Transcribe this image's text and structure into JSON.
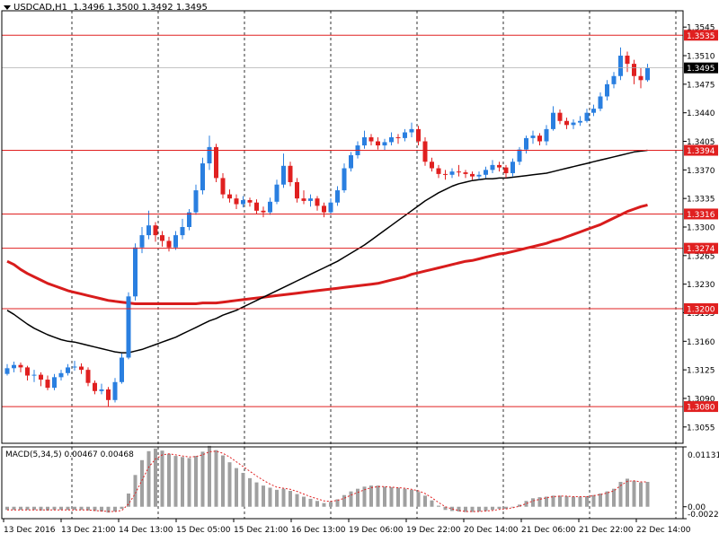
{
  "header": {
    "symbol": "USDCAD,H1",
    "ohlc": "1.3496 1.3500 1.3492 1.3495"
  },
  "macd": {
    "label": "MACD(5,34,5)",
    "values": "0.00467 0.00468",
    "axis_top": "0.01131",
    "axis_zero": "0.00",
    "axis_bottom": "-0.00225"
  },
  "colors": {
    "bull": "#2a7fe0",
    "bear": "#e02020",
    "ma_slow": "#d81c1c",
    "ma_fast": "#000000",
    "level_line": "#e02020",
    "level_tag_bg": "#e02020",
    "current_tag_bg": "#000000",
    "macd_hist": "#a0a0a0",
    "macd_signal": "#e02020"
  },
  "chart_data": {
    "type": "line",
    "title": "USDCAD,H1",
    "ylim": [
      1.3035,
      1.3565
    ],
    "price_ticks": [
      "1.3545",
      "1.3510",
      "1.3475",
      "1.3440",
      "1.3405",
      "1.3370",
      "1.3335",
      "1.3300",
      "1.3265",
      "1.3230",
      "1.3195",
      "1.3160",
      "1.3125",
      "1.3090",
      "1.3055"
    ],
    "time_ticks": [
      "13 Dec 2016",
      "13 Dec 21:00",
      "14 Dec 13:00",
      "15 Dec 05:00",
      "15 Dec 21:00",
      "16 Dec 13:00",
      "19 Dec 06:00",
      "19 Dec 22:00",
      "20 Dec 14:00",
      "21 Dec 06:00",
      "21 Dec 22:00",
      "22 Dec 14:00"
    ],
    "levels": [
      {
        "label": "1.3535",
        "value": 1.3535
      },
      {
        "label": "1.3394",
        "value": 1.3394
      },
      {
        "label": "1.3316",
        "value": 1.3316
      },
      {
        "label": "1.3274",
        "value": 1.3274
      },
      {
        "label": "1.3200",
        "value": 1.32
      },
      {
        "label": "1.3080",
        "value": 1.308
      }
    ],
    "current_price": {
      "label": "1.3495",
      "value": 1.3495
    },
    "series": [
      {
        "values": [
          1.3127,
          1.3131,
          1.3128,
          1.3118,
          1.3119,
          1.3113,
          1.3103,
          1.3116,
          1.3121,
          1.3128,
          1.3129,
          1.3125,
          1.3109,
          1.3099,
          1.3101,
          1.3088,
          1.311,
          1.314,
          1.3215,
          1.3275,
          1.329,
          1.3302,
          1.329,
          1.3283,
          1.3275,
          1.329,
          1.33,
          1.3318,
          1.3345,
          1.3378,
          1.3398,
          1.336,
          1.334,
          1.3335,
          1.3328,
          1.3333,
          1.333,
          1.332,
          1.3318,
          1.3331,
          1.3352,
          1.3375,
          1.3355,
          1.3335,
          1.3332,
          1.3335,
          1.3326,
          1.3318,
          1.333,
          1.3345,
          1.3372,
          1.3388,
          1.34,
          1.341,
          1.3405,
          1.34,
          1.3404,
          1.341,
          1.3409,
          1.3416,
          1.342,
          1.3405,
          1.338,
          1.3372,
          1.3365,
          1.3364,
          1.3368,
          1.3367,
          1.3365,
          1.3362,
          1.3364,
          1.337,
          1.3376,
          1.3373,
          1.3366,
          1.338,
          1.3395,
          1.3409,
          1.3412,
          1.3405,
          1.342,
          1.344,
          1.343,
          1.3425,
          1.3428,
          1.343,
          1.344,
          1.3445,
          1.346,
          1.3475,
          1.3485,
          1.351,
          1.35,
          1.3485,
          1.348,
          1.3495
        ]
      },
      {
        "values": [
          1.3258,
          1.3254,
          1.3248,
          1.3243,
          1.3239,
          1.3235,
          1.3231,
          1.3228,
          1.3225,
          1.3222,
          1.322,
          1.3218,
          1.3216,
          1.3214,
          1.3212,
          1.321,
          1.3209,
          1.3208,
          1.3207,
          1.3206,
          1.3206,
          1.3206,
          1.3206,
          1.3206,
          1.3206,
          1.3206,
          1.3206,
          1.3206,
          1.3206,
          1.3207,
          1.3207,
          1.3207,
          1.3208,
          1.3209,
          1.321,
          1.3211,
          1.3212,
          1.3213,
          1.3214,
          1.3215,
          1.3216,
          1.3217,
          1.3218,
          1.3219,
          1.322,
          1.3221,
          1.3222,
          1.3223,
          1.3224,
          1.3225,
          1.3226,
          1.3227,
          1.3228,
          1.3229,
          1.323,
          1.3231,
          1.3233,
          1.3235,
          1.3237,
          1.3239,
          1.3242,
          1.3244,
          1.3246,
          1.3248,
          1.325,
          1.3252,
          1.3254,
          1.3256,
          1.3258,
          1.3259,
          1.3261,
          1.3263,
          1.3265,
          1.3267,
          1.3268,
          1.327,
          1.3272,
          1.3274,
          1.3276,
          1.3278,
          1.328,
          1.3283,
          1.3285,
          1.3288,
          1.3291,
          1.3294,
          1.3297,
          1.33,
          1.3303,
          1.3307,
          1.3311,
          1.3315,
          1.3319,
          1.3322,
          1.3325,
          1.3327
        ]
      },
      {
        "values": [
          1.3198,
          1.3193,
          1.3187,
          1.3181,
          1.3176,
          1.3172,
          1.3168,
          1.3165,
          1.3162,
          1.316,
          1.3159,
          1.3157,
          1.3155,
          1.3153,
          1.3151,
          1.3149,
          1.3147,
          1.3146,
          1.3146,
          1.3148,
          1.315,
          1.3153,
          1.3156,
          1.3159,
          1.3162,
          1.3165,
          1.3169,
          1.3173,
          1.3177,
          1.3181,
          1.3185,
          1.3188,
          1.3192,
          1.3195,
          1.3198,
          1.3202,
          1.3206,
          1.321,
          1.3214,
          1.3218,
          1.3222,
          1.3226,
          1.323,
          1.3234,
          1.3238,
          1.3242,
          1.3246,
          1.325,
          1.3254,
          1.3258,
          1.3263,
          1.3268,
          1.3273,
          1.3278,
          1.3284,
          1.329,
          1.3296,
          1.3302,
          1.3308,
          1.3314,
          1.332,
          1.3326,
          1.3332,
          1.3337,
          1.3342,
          1.3346,
          1.335,
          1.3353,
          1.3355,
          1.3357,
          1.3358,
          1.3359,
          1.3359,
          1.336,
          1.336,
          1.3361,
          1.3362,
          1.3363,
          1.3364,
          1.3365,
          1.3366,
          1.3368,
          1.337,
          1.3372,
          1.3374,
          1.3376,
          1.3378,
          1.338,
          1.3382,
          1.3384,
          1.3386,
          1.3388,
          1.339,
          1.3392,
          1.3393,
          1.3394
        ]
      }
    ],
    "candles": [
      [
        1.312,
        1.3132,
        1.3118,
        1.3127
      ],
      [
        1.3127,
        1.3135,
        1.3122,
        1.3131
      ],
      [
        1.3131,
        1.3134,
        1.3122,
        1.3128
      ],
      [
        1.3128,
        1.313,
        1.3112,
        1.3118
      ],
      [
        1.3118,
        1.3125,
        1.311,
        1.3119
      ],
      [
        1.3119,
        1.3122,
        1.3105,
        1.3113
      ],
      [
        1.3113,
        1.3118,
        1.31,
        1.3103
      ],
      [
        1.3103,
        1.312,
        1.31,
        1.3116
      ],
      [
        1.3116,
        1.3125,
        1.3112,
        1.3121
      ],
      [
        1.3121,
        1.3132,
        1.3118,
        1.3128
      ],
      [
        1.3128,
        1.3136,
        1.3124,
        1.3129
      ],
      [
        1.3129,
        1.3133,
        1.312,
        1.3125
      ],
      [
        1.3125,
        1.3128,
        1.3105,
        1.3109
      ],
      [
        1.3109,
        1.3112,
        1.3095,
        1.3099
      ],
      [
        1.3099,
        1.3108,
        1.3095,
        1.3101
      ],
      [
        1.3101,
        1.3104,
        1.308,
        1.3088
      ],
      [
        1.3088,
        1.3115,
        1.3085,
        1.311
      ],
      [
        1.311,
        1.3145,
        1.3108,
        1.314
      ],
      [
        1.314,
        1.322,
        1.3138,
        1.3215
      ],
      [
        1.3215,
        1.328,
        1.321,
        1.3275
      ],
      [
        1.3275,
        1.33,
        1.3268,
        1.329
      ],
      [
        1.329,
        1.332,
        1.3285,
        1.3302
      ],
      [
        1.3302,
        1.3306,
        1.3282,
        1.329
      ],
      [
        1.329,
        1.3295,
        1.3276,
        1.3283
      ],
      [
        1.3283,
        1.3288,
        1.327,
        1.3275
      ],
      [
        1.3275,
        1.3295,
        1.3272,
        1.329
      ],
      [
        1.329,
        1.331,
        1.3285,
        1.33
      ],
      [
        1.33,
        1.3322,
        1.3296,
        1.3318
      ],
      [
        1.3318,
        1.3352,
        1.3315,
        1.3345
      ],
      [
        1.3345,
        1.3385,
        1.334,
        1.3378
      ],
      [
        1.3378,
        1.3412,
        1.337,
        1.3398
      ],
      [
        1.3398,
        1.3402,
        1.3355,
        1.336
      ],
      [
        1.336,
        1.3366,
        1.3335,
        1.334
      ],
      [
        1.334,
        1.3346,
        1.333,
        1.3335
      ],
      [
        1.3335,
        1.334,
        1.3322,
        1.3328
      ],
      [
        1.3328,
        1.3338,
        1.3324,
        1.3333
      ],
      [
        1.3333,
        1.3336,
        1.3325,
        1.333
      ],
      [
        1.333,
        1.3334,
        1.3316,
        1.332
      ],
      [
        1.332,
        1.3325,
        1.3312,
        1.3318
      ],
      [
        1.3318,
        1.3336,
        1.3315,
        1.3331
      ],
      [
        1.3331,
        1.3358,
        1.3328,
        1.3352
      ],
      [
        1.3352,
        1.339,
        1.3348,
        1.3375
      ],
      [
        1.3375,
        1.338,
        1.335,
        1.3355
      ],
      [
        1.3355,
        1.336,
        1.333,
        1.3335
      ],
      [
        1.3335,
        1.3345,
        1.3328,
        1.3332
      ],
      [
        1.3332,
        1.334,
        1.3325,
        1.3335
      ],
      [
        1.3335,
        1.3338,
        1.332,
        1.3326
      ],
      [
        1.3326,
        1.333,
        1.3312,
        1.3318
      ],
      [
        1.3318,
        1.3335,
        1.3315,
        1.333
      ],
      [
        1.333,
        1.335,
        1.3326,
        1.3345
      ],
      [
        1.3345,
        1.3378,
        1.3342,
        1.3372
      ],
      [
        1.3372,
        1.3392,
        1.3368,
        1.3388
      ],
      [
        1.3388,
        1.3405,
        1.3384,
        1.34
      ],
      [
        1.34,
        1.3418,
        1.3396,
        1.341
      ],
      [
        1.341,
        1.3414,
        1.34,
        1.3405
      ],
      [
        1.3405,
        1.341,
        1.3395,
        1.34
      ],
      [
        1.34,
        1.3408,
        1.3394,
        1.3404
      ],
      [
        1.3404,
        1.3416,
        1.34,
        1.341
      ],
      [
        1.341,
        1.3414,
        1.3402,
        1.3409
      ],
      [
        1.3409,
        1.342,
        1.3405,
        1.3416
      ],
      [
        1.3416,
        1.3428,
        1.341,
        1.342
      ],
      [
        1.342,
        1.3424,
        1.34,
        1.3405
      ],
      [
        1.3405,
        1.341,
        1.3375,
        1.338
      ],
      [
        1.338,
        1.3385,
        1.3368,
        1.3372
      ],
      [
        1.3372,
        1.3376,
        1.336,
        1.3365
      ],
      [
        1.3365,
        1.337,
        1.3358,
        1.3364
      ],
      [
        1.3364,
        1.3372,
        1.336,
        1.3368
      ],
      [
        1.3368,
        1.3376,
        1.3362,
        1.3367
      ],
      [
        1.3367,
        1.337,
        1.336,
        1.3365
      ],
      [
        1.3365,
        1.3368,
        1.3358,
        1.3362
      ],
      [
        1.3362,
        1.3368,
        1.3358,
        1.3364
      ],
      [
        1.3364,
        1.3374,
        1.336,
        1.337
      ],
      [
        1.337,
        1.3382,
        1.3366,
        1.3376
      ],
      [
        1.3376,
        1.338,
        1.3368,
        1.3373
      ],
      [
        1.3373,
        1.3376,
        1.336,
        1.3366
      ],
      [
        1.3366,
        1.3384,
        1.3362,
        1.338
      ],
      [
        1.338,
        1.3398,
        1.3376,
        1.3395
      ],
      [
        1.3395,
        1.3412,
        1.339,
        1.3409
      ],
      [
        1.3409,
        1.3418,
        1.3402,
        1.3412
      ],
      [
        1.3412,
        1.3415,
        1.34,
        1.3405
      ],
      [
        1.3405,
        1.3425,
        1.34,
        1.342
      ],
      [
        1.342,
        1.3448,
        1.3418,
        1.344
      ],
      [
        1.344,
        1.3444,
        1.3426,
        1.343
      ],
      [
        1.343,
        1.3434,
        1.342,
        1.3425
      ],
      [
        1.3425,
        1.3432,
        1.342,
        1.3428
      ],
      [
        1.3428,
        1.3436,
        1.3424,
        1.343
      ],
      [
        1.343,
        1.3445,
        1.3428,
        1.344
      ],
      [
        1.344,
        1.345,
        1.3436,
        1.3445
      ],
      [
        1.3445,
        1.3465,
        1.3442,
        1.346
      ],
      [
        1.346,
        1.348,
        1.3455,
        1.3475
      ],
      [
        1.3475,
        1.349,
        1.347,
        1.3485
      ],
      [
        1.3485,
        1.352,
        1.348,
        1.351
      ],
      [
        1.351,
        1.3515,
        1.349,
        1.35
      ],
      [
        1.35,
        1.3505,
        1.3475,
        1.3485
      ],
      [
        1.3485,
        1.3495,
        1.347,
        1.348
      ],
      [
        1.348,
        1.35,
        1.3478,
        1.3495
      ]
    ],
    "macd_hist": [
      -0.0006,
      -0.0006,
      -0.0006,
      -0.0006,
      -0.0006,
      -0.0007,
      -0.0007,
      -0.0006,
      -0.0006,
      -0.0006,
      -0.0006,
      -0.0006,
      -0.0007,
      -0.0008,
      -0.0009,
      -0.0011,
      -0.0009,
      -0.0004,
      0.0025,
      0.006,
      0.0088,
      0.0105,
      0.011,
      0.0106,
      0.01,
      0.0096,
      0.0094,
      0.0092,
      0.0096,
      0.0104,
      0.0115,
      0.0107,
      0.0097,
      0.0084,
      0.0073,
      0.0064,
      0.0054,
      0.0046,
      0.004,
      0.0036,
      0.0032,
      0.0034,
      0.003,
      0.0024,
      0.0019,
      0.0015,
      0.0011,
      0.0007,
      0.0009,
      0.0014,
      0.0022,
      0.0029,
      0.0034,
      0.0038,
      0.004,
      0.004,
      0.0038,
      0.0037,
      0.0036,
      0.0034,
      0.0032,
      0.0028,
      0.0021,
      0.0012,
      0.0002,
      -0.0006,
      -0.0008,
      -0.0009,
      -0.001,
      -0.001,
      -0.0009,
      -0.0008,
      -0.0006,
      -0.0004,
      -0.0004,
      -0.0001,
      0.0004,
      0.0011,
      0.0016,
      0.0018,
      0.0019,
      0.0021,
      0.0021,
      0.002,
      0.0019,
      0.0019,
      0.002,
      0.0022,
      0.0025,
      0.0029,
      0.0034,
      0.0047,
      0.0053,
      0.0049,
      0.0046,
      0.0047
    ],
    "macd_signal": [
      -0.0006,
      -0.0006,
      -0.0006,
      -0.0006,
      -0.0006,
      -0.0006,
      -0.0006,
      -0.0006,
      -0.0006,
      -0.0006,
      -0.0006,
      -0.0006,
      -0.0006,
      -0.0007,
      -0.0008,
      -0.0009,
      -0.0009,
      -0.0007,
      0.0005,
      0.0025,
      0.005,
      0.0075,
      0.009,
      0.0098,
      0.01,
      0.0098,
      0.0096,
      0.0094,
      0.0095,
      0.0098,
      0.0104,
      0.0105,
      0.0101,
      0.0094,
      0.0085,
      0.0076,
      0.0067,
      0.0058,
      0.005,
      0.0043,
      0.0037,
      0.0035,
      0.0033,
      0.0029,
      0.0024,
      0.0019,
      0.0015,
      0.0011,
      0.001,
      0.0012,
      0.0016,
      0.0022,
      0.0027,
      0.0032,
      0.0036,
      0.0038,
      0.0038,
      0.0037,
      0.0036,
      0.0035,
      0.0033,
      0.003,
      0.0025,
      0.0017,
      0.0008,
      0.0,
      -0.0004,
      -0.0007,
      -0.0009,
      -0.0009,
      -0.0009,
      -0.0008,
      -0.0007,
      -0.0005,
      -0.0004,
      -0.0002,
      0.0001,
      0.0006,
      0.0011,
      0.0014,
      0.0017,
      0.0019,
      0.002,
      0.002,
      0.0019,
      0.0019,
      0.0019,
      0.0021,
      0.0023,
      0.0026,
      0.003,
      0.004,
      0.0048,
      0.0049,
      0.0047,
      0.0047
    ],
    "macd_ylim": [
      -0.00225,
      0.01131
    ]
  }
}
